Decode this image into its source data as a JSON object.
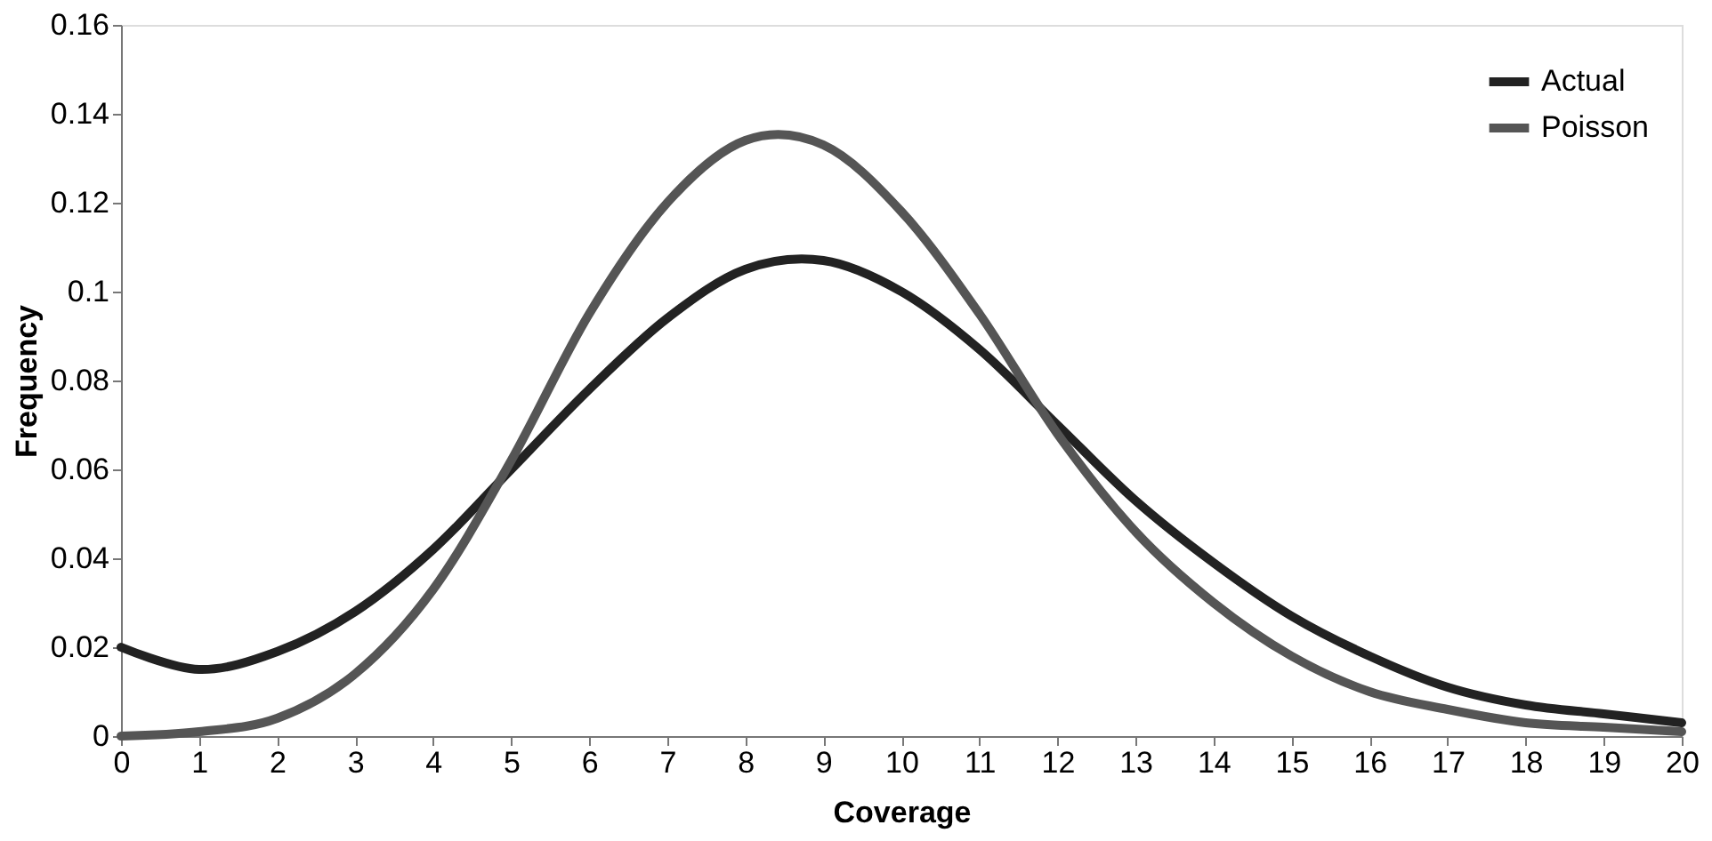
{
  "chart_data": {
    "type": "line",
    "xlabel": "Coverage",
    "ylabel": "Frequency",
    "x": [
      0,
      1,
      2,
      3,
      4,
      5,
      6,
      7,
      8,
      9,
      10,
      11,
      12,
      13,
      14,
      15,
      16,
      17,
      18,
      19,
      20
    ],
    "series": [
      {
        "name": "Actual",
        "color": "#222222",
        "values": [
          0.02,
          0.015,
          0.019,
          0.028,
          0.042,
          0.06,
          0.078,
          0.094,
          0.105,
          0.107,
          0.1,
          0.087,
          0.07,
          0.053,
          0.039,
          0.027,
          0.018,
          0.011,
          0.007,
          0.005,
          0.003
        ]
      },
      {
        "name": "Poisson",
        "color": "#555555",
        "values": [
          0,
          0.001,
          0.004,
          0.014,
          0.033,
          0.062,
          0.095,
          0.12,
          0.134,
          0.133,
          0.118,
          0.095,
          0.068,
          0.046,
          0.03,
          0.018,
          0.01,
          0.006,
          0.003,
          0.002,
          0.001
        ]
      }
    ],
    "xlim": [
      0,
      20
    ],
    "xticks": [
      0,
      1,
      2,
      3,
      4,
      5,
      6,
      7,
      8,
      9,
      10,
      11,
      12,
      13,
      14,
      15,
      16,
      17,
      18,
      19,
      20
    ],
    "ylim": [
      0,
      0.16
    ],
    "yticks": [
      0,
      0.02,
      0.04,
      0.06,
      0.08,
      0.1,
      0.12,
      0.14,
      0.16
    ],
    "grid": false,
    "legend": "top right",
    "marker": "none",
    "line_style": "solid"
  }
}
